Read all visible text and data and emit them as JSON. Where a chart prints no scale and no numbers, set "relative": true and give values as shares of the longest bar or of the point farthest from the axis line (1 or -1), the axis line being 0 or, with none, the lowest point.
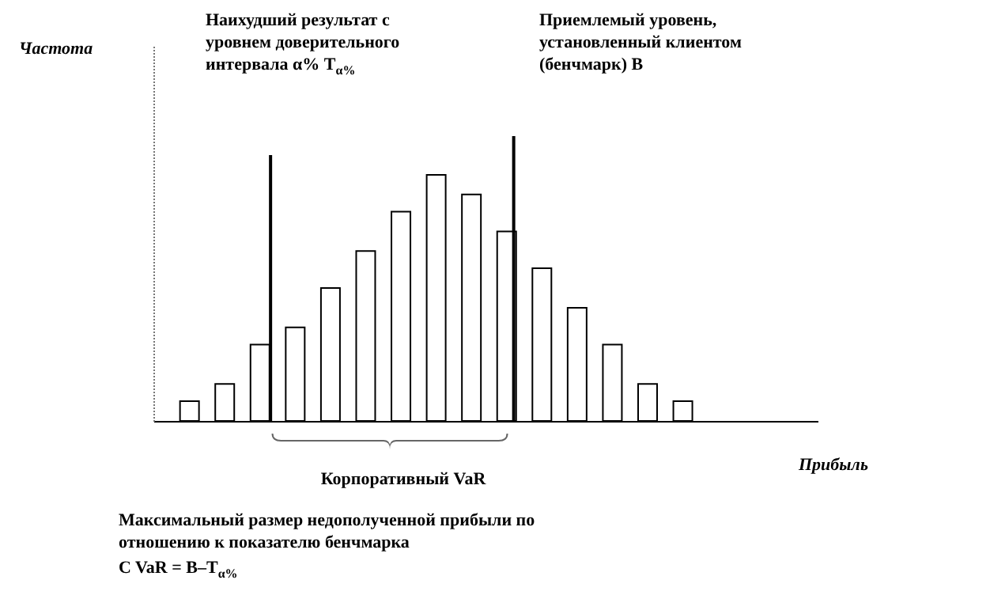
{
  "chart_data": {
    "type": "bar",
    "relative": true,
    "categories": [
      null,
      null,
      null,
      null,
      null,
      null,
      null,
      null,
      null,
      null,
      null,
      null,
      null,
      null,
      null
    ],
    "values": [
      0.08,
      0.15,
      0.31,
      0.38,
      0.54,
      0.69,
      0.85,
      1,
      0.92,
      0.77,
      0.62,
      0.46,
      0.31,
      0.15,
      0.08
    ],
    "color": "#ffffff",
    "annotations": [
      "Частота",
      "Наихудший результат с уровнем доверительного интервала α% T$_{α%}$",
      "Приемлемый уровень, установленный клиентом (бенчмарк) B",
      "Прибыль",
      "Корпоративный VaR",
      "Максимальный размер недополученной прибыли по отношению к показателю бенчмарка",
      "C VaR = B–T$_{α%}$"
    ]
  }
}
